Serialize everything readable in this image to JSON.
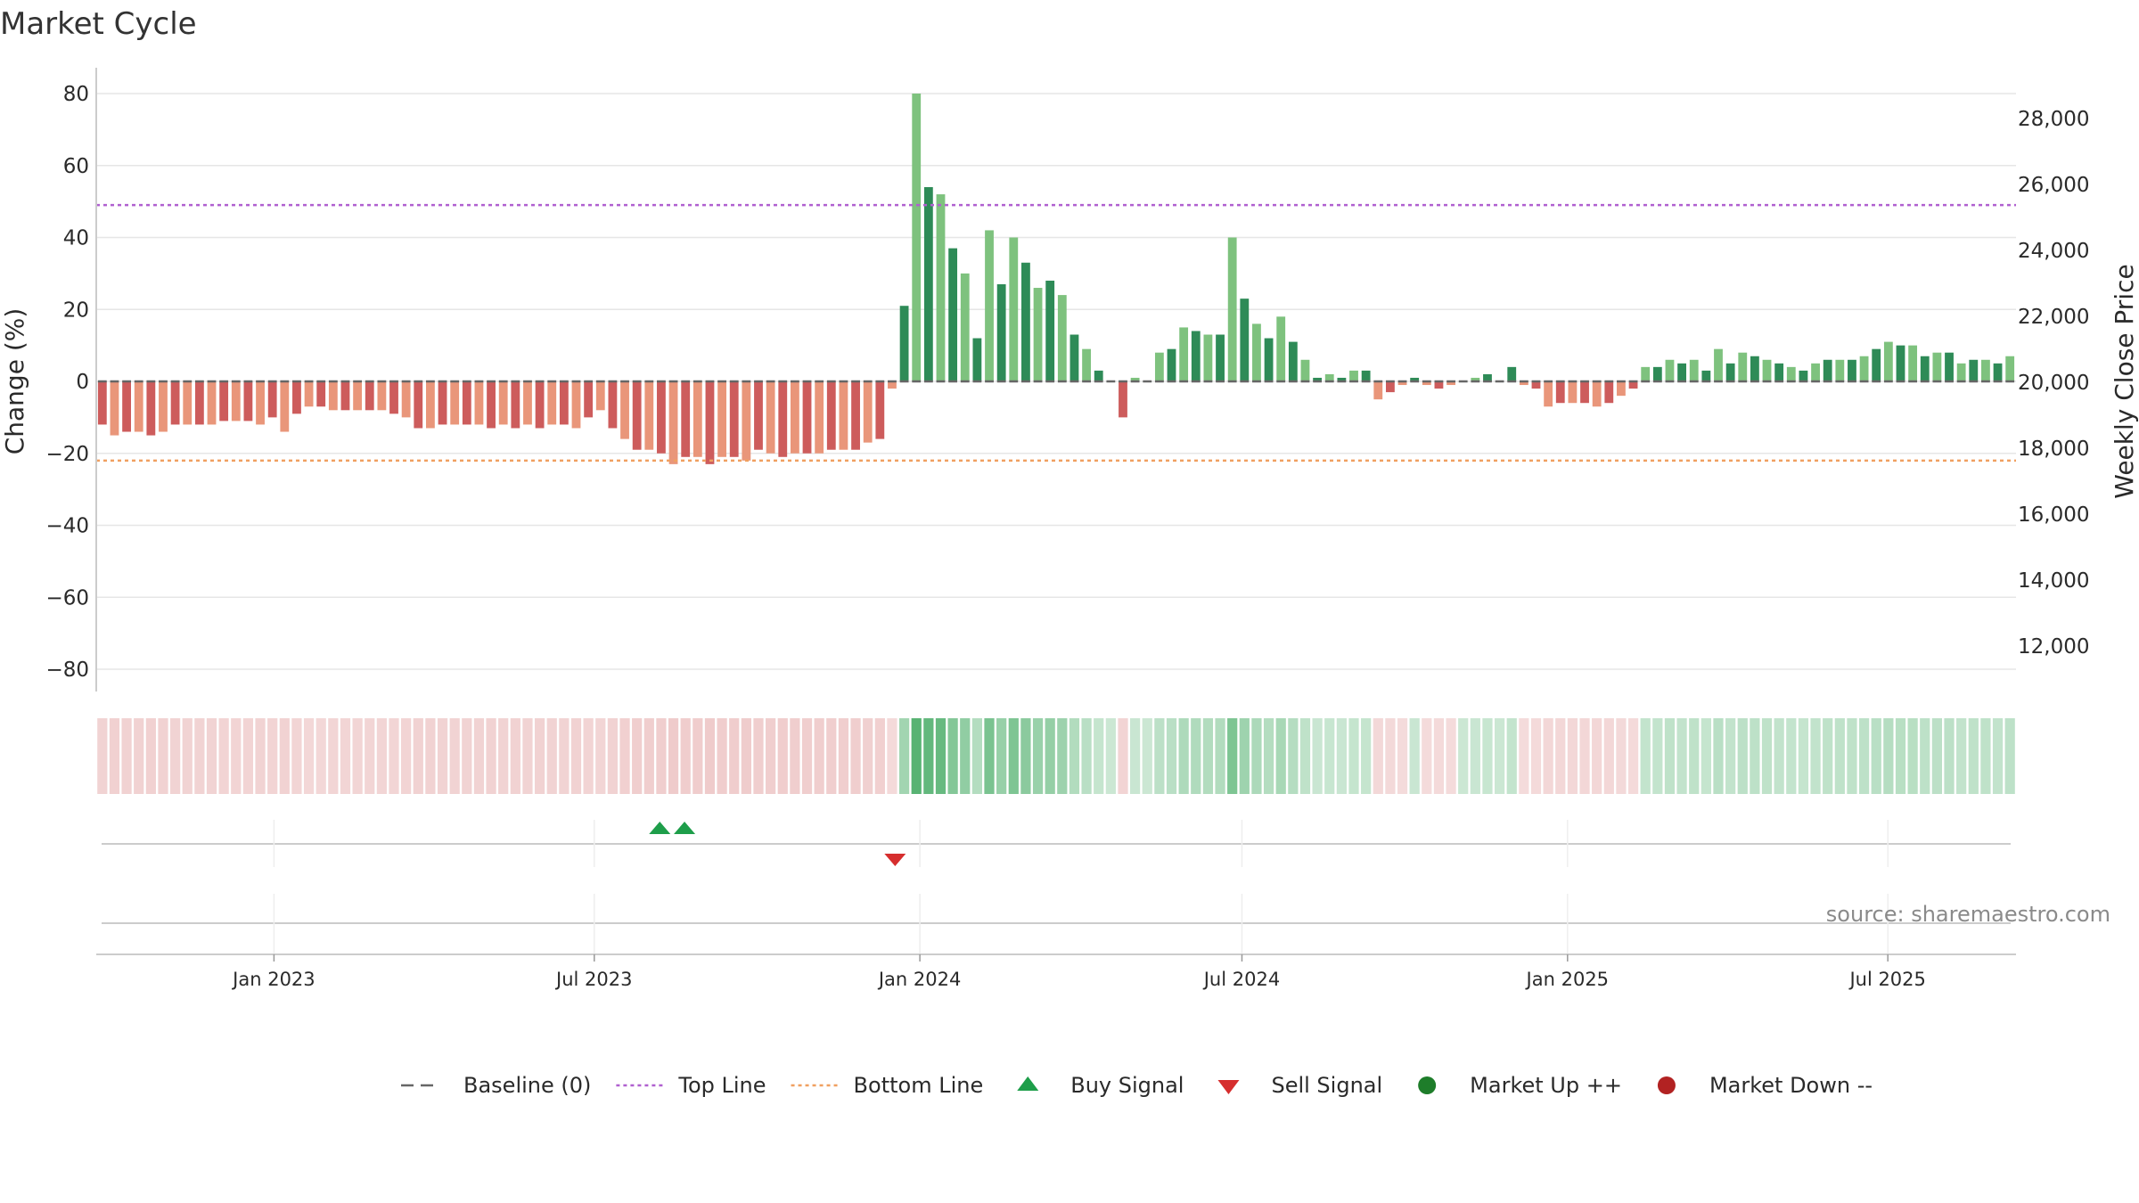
{
  "chart_data": {
    "type": "bar",
    "title": "Market Cycle",
    "ylabel": "Change (%)",
    "y2label": "Weekly Close Price",
    "ylim": [
      -85,
      86
    ],
    "y2lim": [
      11400,
      28700
    ],
    "yticks": [
      80,
      60,
      40,
      20,
      0,
      -20,
      -40,
      -60,
      -80
    ],
    "yticklabels": [
      "80",
      "60",
      "40",
      "20",
      "0",
      "−20",
      "−40",
      "−60",
      "−80"
    ],
    "y2ticks": [
      28000,
      26000,
      24000,
      22000,
      20000,
      18000,
      16000,
      14000,
      12000
    ],
    "y2ticklabels": [
      "28,000",
      "26,000",
      "24,000",
      "22,000",
      "20,000",
      "18,000",
      "16,000",
      "14,000",
      "12,000"
    ],
    "start_week": "2022-09-26",
    "end_week": "2025-09-08",
    "values": [
      -12,
      -15,
      -14,
      -14,
      -15,
      -14,
      -12,
      -12,
      -12,
      -12,
      -11,
      -11,
      -11,
      -12,
      -10,
      -14,
      -9,
      -7,
      -7,
      -8,
      -8,
      -8,
      -8,
      -8,
      -9,
      -10,
      -13,
      -13,
      -12,
      -12,
      -12,
      -12,
      -13,
      -12,
      -13,
      -12,
      -13,
      -12,
      -12,
      -13,
      -10,
      -8,
      -13,
      -16,
      -19,
      -19,
      -20,
      -23,
      -21,
      -21,
      -23,
      -21,
      -21,
      -22,
      -19,
      -20,
      -21,
      -20,
      -20,
      -20,
      -19,
      -19,
      -19,
      -17,
      -16,
      -2,
      21,
      80,
      54,
      52,
      37,
      30,
      12,
      42,
      27,
      40,
      33,
      26,
      28,
      24,
      13,
      9,
      3,
      0,
      -10,
      1,
      0,
      8,
      9,
      15,
      14,
      13,
      13,
      40,
      23,
      16,
      12,
      18,
      11,
      6,
      1,
      2,
      1,
      3,
      3,
      -5,
      -3,
      -1,
      1,
      -1,
      -2,
      -1,
      0,
      1,
      2,
      0,
      4,
      -1,
      -2,
      -7,
      -6,
      -6,
      -6,
      -7,
      -6,
      -4,
      -2,
      4,
      4,
      6,
      5,
      6,
      3,
      9,
      5,
      8,
      7,
      6,
      5,
      4,
      3,
      5,
      6,
      6,
      6,
      7,
      9,
      11,
      10,
      10,
      7,
      8,
      8,
      5,
      6,
      6,
      5,
      7
    ],
    "top_line": 49,
    "bottom_line": -22,
    "buy_signals": [
      "2023-08-07",
      "2023-08-21"
    ],
    "sell_signals": [
      "2023-12-18"
    ],
    "xticks": [
      "2023-01-01",
      "2023-07-01",
      "2024-01-01",
      "2024-07-01",
      "2025-01-01",
      "2025-07-01"
    ],
    "xticklabels": [
      "Jan 2023",
      "Jul 2023",
      "Jan 2024",
      "Jul 2024",
      "Jan 2025",
      "Jul 2025"
    ],
    "legend": [
      {
        "label": "Baseline (0)",
        "kind": "dash",
        "color": "#666666"
      },
      {
        "label": "Top Line",
        "kind": "dot",
        "color": "#b060d0"
      },
      {
        "label": "Bottom Line",
        "kind": "dot",
        "color": "#f0a060"
      },
      {
        "label": "Buy Signal",
        "kind": "up",
        "color": "#1e9e4a"
      },
      {
        "label": "Sell Signal",
        "kind": "down",
        "color": "#d62e2e"
      },
      {
        "label": "Market Up ++",
        "kind": "circle",
        "color": "#1e7d2a"
      },
      {
        "label": "Market Down --",
        "kind": "circle",
        "color": "#b22222"
      }
    ],
    "source": "source: sharemaestro.com",
    "colors": {
      "up_dark": "#2e8b57",
      "up_light": "#7ec27e",
      "down_dark": "#cd5c5c",
      "down_light": "#e9967a",
      "grid": "#e6e6e6",
      "top_line": "#b060d0",
      "bottom_line": "#f0a060",
      "buy": "#1e9e4a",
      "sell": "#d62e2e"
    },
    "legend_position": "bottom-center",
    "grid": true
  }
}
